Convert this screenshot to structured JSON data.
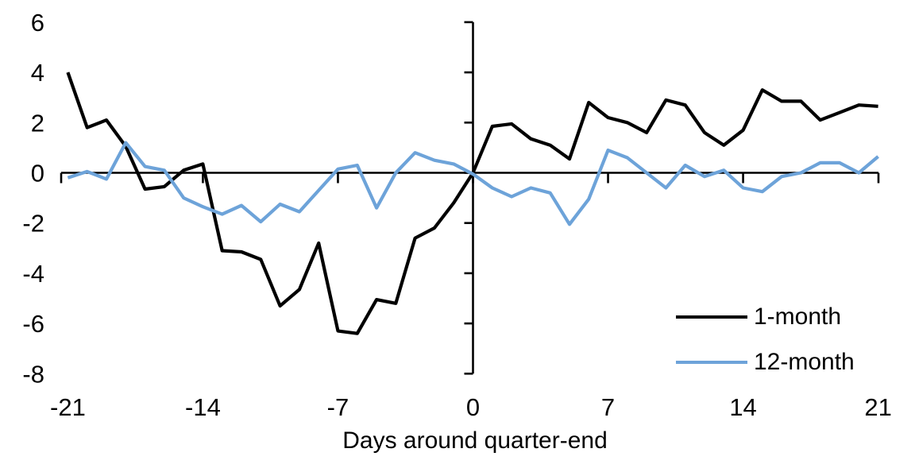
{
  "chart_data": {
    "type": "line",
    "title": "",
    "xlabel": "Days around quarter-end",
    "ylabel": "",
    "xlim": [
      -21,
      21
    ],
    "ylim": [
      -8,
      6
    ],
    "x_ticks": [
      -21,
      -14,
      -7,
      0,
      7,
      14,
      21
    ],
    "y_ticks": [
      6,
      4,
      2,
      0,
      -2,
      -4,
      -6,
      -8
    ],
    "grid": false,
    "legend_position": "inside-bottom-right",
    "axis_color": "#000000",
    "x": [
      -21,
      -20,
      -19,
      -18,
      -17,
      -16,
      -15,
      -14,
      -13,
      -12,
      -11,
      -10,
      -9,
      -8,
      -7,
      -6,
      -5,
      -4,
      -3,
      -2,
      -1,
      0,
      1,
      2,
      3,
      4,
      5,
      6,
      7,
      8,
      9,
      10,
      11,
      12,
      13,
      14,
      15,
      16,
      17,
      18,
      19,
      20,
      21
    ],
    "series": [
      {
        "name": "1-month",
        "color": "#000000",
        "values": [
          4.0,
          1.8,
          2.1,
          1.05,
          -0.65,
          -0.55,
          0.1,
          0.35,
          -3.1,
          -3.15,
          -3.45,
          -5.3,
          -4.65,
          -2.8,
          -6.3,
          -6.4,
          -5.05,
          -5.2,
          -2.6,
          -2.2,
          -1.2,
          0.0,
          1.85,
          1.95,
          1.35,
          1.1,
          0.55,
          2.8,
          2.2,
          2.0,
          1.6,
          2.9,
          2.7,
          1.6,
          1.1,
          1.7,
          3.3,
          2.85,
          2.85,
          2.1,
          2.4,
          2.7,
          2.65
        ]
      },
      {
        "name": "12-month",
        "color": "#6DA3D9",
        "values": [
          -0.2,
          0.05,
          -0.25,
          1.2,
          0.25,
          0.1,
          -1.0,
          -1.35,
          -1.65,
          -1.3,
          -1.95,
          -1.25,
          -1.55,
          -0.7,
          0.15,
          0.3,
          -1.4,
          0.0,
          0.8,
          0.5,
          0.35,
          -0.05,
          -0.6,
          -0.95,
          -0.6,
          -0.8,
          -2.05,
          -1.05,
          0.9,
          0.6,
          0.0,
          -0.6,
          0.3,
          -0.15,
          0.1,
          -0.6,
          -0.75,
          -0.15,
          0.0,
          0.4,
          0.4,
          0.0,
          0.65
        ]
      }
    ]
  }
}
